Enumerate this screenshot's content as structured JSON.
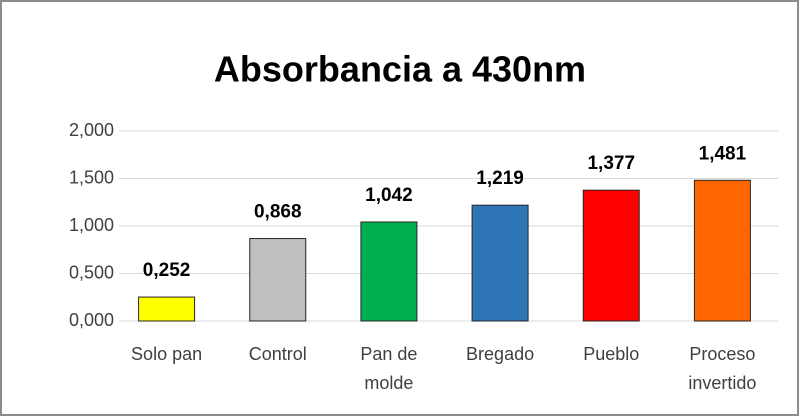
{
  "chart_data": {
    "type": "bar",
    "title": "Absorbancia a 430nm",
    "categories": [
      "Solo pan",
      "Control",
      "Pan de molde",
      "Bregado",
      "Pueblo",
      "Proceso invertido"
    ],
    "values": [
      0.252,
      0.868,
      1.042,
      1.219,
      1.377,
      1.481
    ],
    "value_labels": [
      "0,252",
      "0,868",
      "1,042",
      "1,219",
      "1,377",
      "1,481"
    ],
    "colors": [
      "#ffff00",
      "#bfbfbf",
      "#00b050",
      "#2e75b6",
      "#ff0000",
      "#ff6600"
    ],
    "ylim": [
      0,
      2
    ],
    "yticks": [
      {
        "value": 0,
        "label": "0,000"
      },
      {
        "value": 0.5,
        "label": "0,500"
      },
      {
        "value": 1,
        "label": "1,000"
      },
      {
        "value": 1.5,
        "label": "1,500"
      },
      {
        "value": 2,
        "label": "2,000"
      }
    ],
    "grid": true
  }
}
